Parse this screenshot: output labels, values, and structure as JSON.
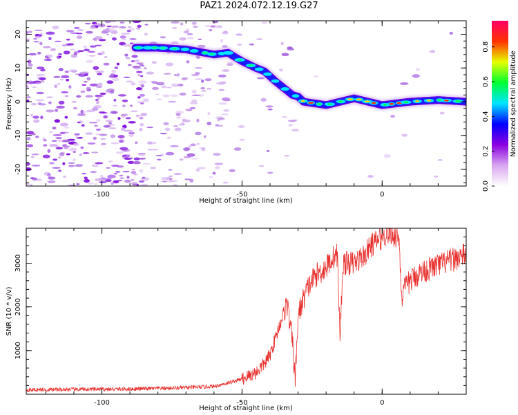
{
  "title": "PAZ1.2024.072.12.19.G27",
  "chart_data": [
    {
      "type": "heatmap",
      "xlabel": "Height of straight line (km)",
      "ylabel": "Frequency (Hz)",
      "xlim": [
        -127,
        30
      ],
      "ylim": [
        -25,
        24
      ],
      "xticks": [
        -100,
        -50,
        0
      ],
      "yticks": [
        20,
        10,
        0,
        -10,
        -20
      ],
      "ridge": {
        "x": [
          -88,
          -80,
          -70,
          -60,
          -55,
          -50,
          -45,
          -42,
          -38,
          -35,
          -32,
          -30,
          -28,
          -20,
          -10,
          0,
          10,
          20,
          30
        ],
        "y": [
          16,
          16,
          15.5,
          14,
          14.5,
          12,
          10,
          9,
          6,
          4,
          2,
          1.5,
          0,
          -1,
          1,
          -1,
          0,
          0.5,
          0
        ]
      },
      "colorbar": {
        "label": "Normalized spectral amplitude",
        "range": [
          0,
          0.95
        ],
        "ticks": [
          0.0,
          0.2,
          0.4,
          0.6,
          0.8
        ],
        "tick_labels": [
          "0.0",
          "0.2",
          "0.4",
          "0.6",
          "0.8"
        ],
        "colors": [
          "#ffffff",
          "#d9a6f0",
          "#8a00e0",
          "#0000ff",
          "#00e5ff",
          "#00ff33",
          "#e6ff00",
          "#ff3300",
          "#ff0066"
        ]
      }
    },
    {
      "type": "line",
      "xlabel": "Height of straight line (km)",
      "ylabel": "SNR (10 * v/v)",
      "xlim": [
        -127,
        30
      ],
      "ylim": [
        0,
        3800
      ],
      "xticks": [
        -100,
        -50,
        0
      ],
      "yticks": [
        1000,
        2000,
        3000
      ],
      "series": [
        {
          "color": "#e8312e",
          "x": [
            -127,
            -110,
            -90,
            -70,
            -60,
            -55,
            -50,
            -45,
            -42,
            -40,
            -38,
            -36,
            -34,
            -32,
            -31,
            -30,
            -28,
            -26,
            -24,
            -22,
            -20,
            -18,
            -16,
            -15,
            -14,
            -12,
            -10,
            -8,
            -6,
            -4,
            -2,
            0,
            2,
            4,
            6,
            7,
            8,
            10,
            12,
            14,
            16,
            18,
            20,
            22,
            24,
            26,
            28,
            30
          ],
          "y": [
            100,
            110,
            120,
            150,
            180,
            260,
            350,
            500,
            700,
            900,
            1300,
            1700,
            2100,
            1200,
            300,
            1800,
            2200,
            2500,
            2700,
            2800,
            2900,
            3100,
            3200,
            1300,
            3000,
            3000,
            3000,
            3100,
            3200,
            3400,
            3500,
            3600,
            3700,
            3650,
            3600,
            2200,
            2400,
            2600,
            2700,
            2800,
            2850,
            2900,
            2950,
            3000,
            3050,
            3100,
            3150,
            3200
          ]
        }
      ]
    }
  ]
}
